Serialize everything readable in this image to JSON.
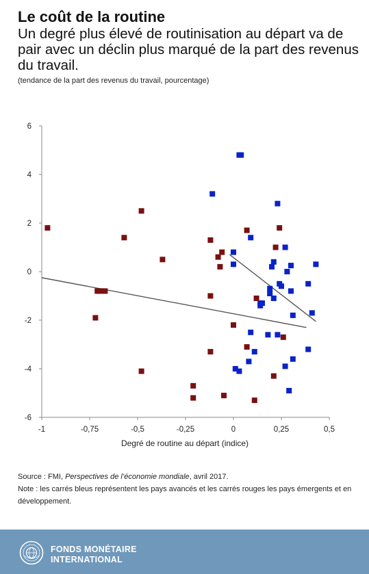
{
  "header": {
    "title": "Le coût de la routine",
    "subtitle": "Un degré plus élevé de routinisation au départ va de pair avec un déclin plus marqué de la part des revenus du travail.",
    "unit_note": "(tendance de la part des revenus du travail, pourcentage)"
  },
  "chart_data": {
    "type": "scatter",
    "xlabel": "Degré de routine au départ (indice)",
    "ylabel": "",
    "xlim": [
      -1,
      0.5
    ],
    "ylim": [
      -6,
      6
    ],
    "x_ticks": [
      -1,
      -0.75,
      -0.5,
      -0.25,
      0,
      0.25,
      0.5
    ],
    "x_tick_labels": [
      "-1",
      "-0,75",
      "-0,5",
      "-0,25",
      "0",
      "0,25",
      "0,5"
    ],
    "y_ticks": [
      -6,
      -4,
      -2,
      0,
      2,
      4,
      6
    ],
    "y_tick_labels": [
      "-6",
      "-4",
      "-2",
      "0",
      "2",
      "4",
      "6"
    ],
    "series": [
      {
        "color": "#0a23c8",
        "points": [
          [
            0.03,
            4.8
          ],
          [
            0.04,
            4.8
          ],
          [
            -0.11,
            3.2
          ],
          [
            0.23,
            2.8
          ],
          [
            0.09,
            1.4
          ],
          [
            0.27,
            1.0
          ],
          [
            0.0,
            0.8
          ],
          [
            0.21,
            0.4
          ],
          [
            0.2,
            0.2
          ],
          [
            0.3,
            0.25
          ],
          [
            0.43,
            0.3
          ],
          [
            0.0,
            0.3
          ],
          [
            0.28,
            0.0
          ],
          [
            0.24,
            -0.5
          ],
          [
            0.25,
            -0.6
          ],
          [
            0.19,
            -0.7
          ],
          [
            0.3,
            -0.8
          ],
          [
            0.39,
            -0.5
          ],
          [
            0.19,
            -0.9
          ],
          [
            0.21,
            -1.1
          ],
          [
            0.14,
            -1.3
          ],
          [
            0.15,
            -1.3
          ],
          [
            0.14,
            -1.4
          ],
          [
            0.41,
            -1.7
          ],
          [
            0.31,
            -1.8
          ],
          [
            0.09,
            -2.5
          ],
          [
            0.18,
            -2.6
          ],
          [
            0.23,
            -2.6
          ],
          [
            0.11,
            -3.3
          ],
          [
            0.39,
            -3.2
          ],
          [
            0.08,
            -3.7
          ],
          [
            0.31,
            -3.6
          ],
          [
            0.27,
            -3.9
          ],
          [
            0.01,
            -4.0
          ],
          [
            0.03,
            -4.1
          ],
          [
            0.29,
            -4.9
          ]
        ]
      },
      {
        "color": "#7a1010",
        "points": [
          [
            -0.97,
            1.8
          ],
          [
            -0.48,
            2.5
          ],
          [
            -0.57,
            1.4
          ],
          [
            -0.37,
            0.5
          ],
          [
            -0.12,
            1.3
          ],
          [
            -0.08,
            0.6
          ],
          [
            -0.06,
            0.8
          ],
          [
            -0.07,
            0.2
          ],
          [
            0.07,
            1.7
          ],
          [
            0.24,
            1.8
          ],
          [
            0.22,
            1.0
          ],
          [
            -0.71,
            -0.8
          ],
          [
            -0.69,
            -0.8
          ],
          [
            -0.7,
            -0.8
          ],
          [
            -0.67,
            -0.8
          ],
          [
            -0.72,
            -1.9
          ],
          [
            -0.12,
            -1.0
          ],
          [
            0.12,
            -1.1
          ],
          [
            0.0,
            -2.2
          ],
          [
            0.26,
            -2.7
          ],
          [
            0.07,
            -3.1
          ],
          [
            -0.12,
            -3.3
          ],
          [
            -0.48,
            -4.1
          ],
          [
            0.21,
            -4.3
          ],
          [
            -0.21,
            -4.7
          ],
          [
            -0.21,
            -5.2
          ],
          [
            -0.05,
            -5.1
          ],
          [
            0.11,
            -5.3
          ]
        ]
      }
    ],
    "trend_lines": [
      {
        "x": [
          -1.0,
          0.38
        ],
        "y": [
          -0.25,
          -2.3
        ]
      },
      {
        "x": [
          -0.02,
          0.43
        ],
        "y": [
          0.7,
          -2.05
        ]
      }
    ]
  },
  "footer": {
    "source_prefix": "Source : FMI, ",
    "source_title": "Perspectives de l’économie mondiale",
    "source_suffix": ", avril 2017.",
    "note": "Note : les carrés bleus représentent les pays avancés et les carrés rouges les pays émergents et en développement."
  },
  "branding": {
    "line1": "FONDS MONÉTAIRE",
    "line2": "INTERNATIONAL",
    "banner_color": "#6f98bb"
  }
}
